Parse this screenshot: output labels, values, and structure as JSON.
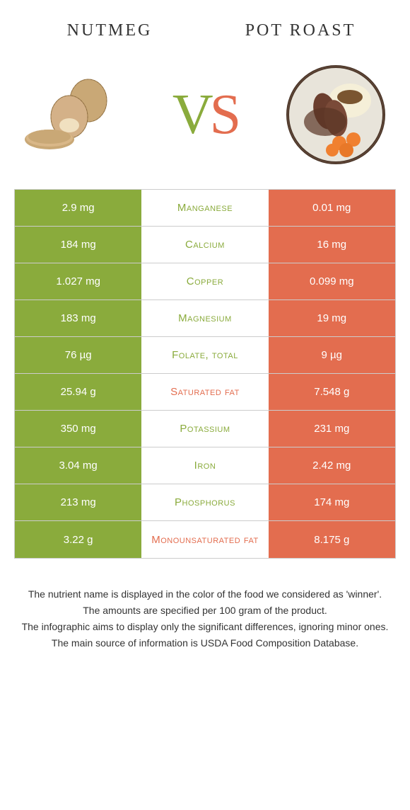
{
  "header": {
    "left": "Nutmeg",
    "right": "Pot roast"
  },
  "vs": {
    "v": "V",
    "s": "S"
  },
  "colors": {
    "left_bg": "#8aab3c",
    "right_bg": "#e36d4f",
    "left_text": "#8aab3c",
    "right_text": "#e36d4f",
    "cell_text": "#ffffff",
    "border": "#cccccc"
  },
  "rows": [
    {
      "left": "2.9 mg",
      "name": "Manganese",
      "right": "0.01 mg",
      "winner": "left"
    },
    {
      "left": "184 mg",
      "name": "Calcium",
      "right": "16 mg",
      "winner": "left"
    },
    {
      "left": "1.027 mg",
      "name": "Copper",
      "right": "0.099 mg",
      "winner": "left"
    },
    {
      "left": "183 mg",
      "name": "Magnesium",
      "right": "19 mg",
      "winner": "left"
    },
    {
      "left": "76 µg",
      "name": "Folate, total",
      "right": "9 µg",
      "winner": "left"
    },
    {
      "left": "25.94 g",
      "name": "Saturated fat",
      "right": "7.548 g",
      "winner": "right"
    },
    {
      "left": "350 mg",
      "name": "Potassium",
      "right": "231 mg",
      "winner": "left"
    },
    {
      "left": "3.04 mg",
      "name": "Iron",
      "right": "2.42 mg",
      "winner": "left"
    },
    {
      "left": "213 mg",
      "name": "Phosphorus",
      "right": "174 mg",
      "winner": "left"
    },
    {
      "left": "3.22 g",
      "name": "Monounsaturated fat",
      "right": "8.175 g",
      "winner": "right"
    }
  ],
  "footer": [
    "The nutrient name is displayed in the color of the food we considered as 'winner'.",
    "The amounts are specified per 100 gram of the product.",
    "The infographic aims to display only the significant differences, ignoring minor ones.",
    "The main source of information is USDA Food Composition Database."
  ]
}
